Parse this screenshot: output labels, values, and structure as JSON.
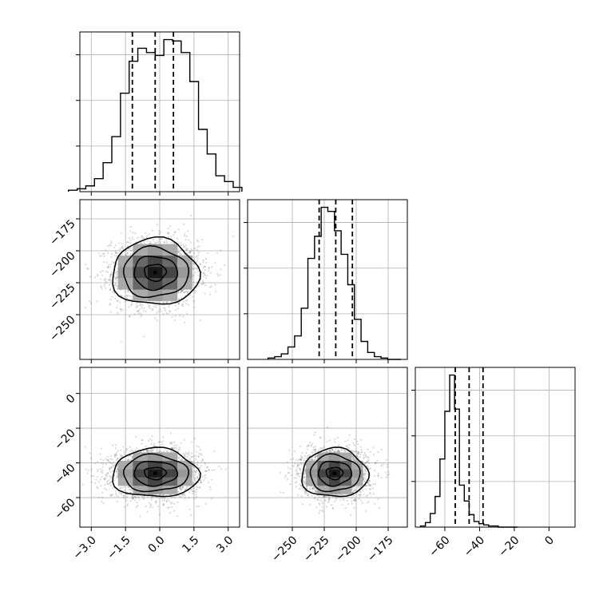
{
  "chart_data": {
    "type": "corner",
    "grid": true,
    "parameters": [
      {
        "range": [
          -3.5,
          3.5
        ],
        "ticks": [
          -3.0,
          -1.5,
          0.0,
          1.5,
          3.0
        ],
        "tick_labels": [
          "−3.0",
          "−1.5",
          "0.0",
          "1.5",
          "3.0"
        ],
        "center": -0.2,
        "std": 0.95,
        "quantiles": [
          -1.2,
          -0.2,
          0.6
        ],
        "hist_counts": [
          1,
          2,
          4,
          9,
          20,
          38,
          68,
          90,
          99,
          96,
          94,
          105,
          104,
          96,
          76,
          43,
          26,
          11,
          7,
          3
        ]
      },
      {
        "range": [
          -285,
          -160
        ],
        "ticks": [
          -250,
          -225,
          -200,
          -175
        ],
        "tick_labels": [
          "−250",
          "−225",
          "−200",
          "−175"
        ],
        "center": -217,
        "std": 13,
        "quantiles": [
          -229,
          -216,
          -203
        ],
        "hist_counts": [
          1,
          2,
          4,
          9,
          17,
          37,
          73,
          89,
          110,
          107,
          93,
          76,
          54,
          29,
          13,
          5,
          2,
          1,
          0,
          0
        ]
      },
      {
        "range": [
          -77,
          15
        ],
        "ticks": [
          -60,
          -40,
          -20,
          0
        ],
        "tick_labels": [
          "−60",
          "−40",
          "−20",
          "0"
        ],
        "center": -46,
        "std": 7,
        "quantiles": [
          -54,
          -46,
          -38
        ],
        "hist_counts": [
          1,
          4,
          12,
          27,
          60,
          102,
          134,
          104,
          37,
          23,
          11,
          5,
          3,
          2,
          1,
          1,
          0,
          0,
          0,
          0
        ]
      }
    ],
    "pairs": [
      {
        "row": 1,
        "col": 0,
        "y_ticks": [
          -175,
          -200,
          -225,
          -250
        ],
        "y_tick_labels": [
          "−175",
          "−200",
          "−225",
          "−250"
        ]
      },
      {
        "row": 2,
        "col": 0,
        "y_ticks": [
          0,
          -20,
          -40,
          -60
        ],
        "y_tick_labels": [
          "0",
          "−20",
          "−40",
          "−60"
        ]
      },
      {
        "row": 2,
        "col": 1
      }
    ]
  }
}
